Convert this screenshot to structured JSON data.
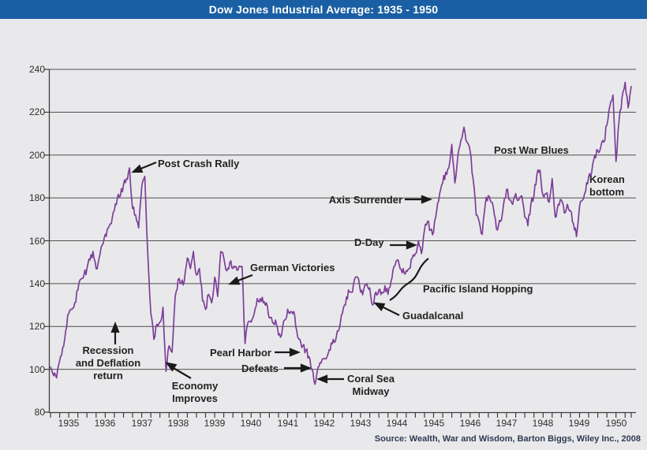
{
  "title_bar": {
    "title": "Dow Jones Industrial Average: 1935 - 1950"
  },
  "source_line": "Source: Wealth, War and Wisdom, Barton Biggs, Wiley Inc., 2008",
  "colors": {
    "titlebar_bg": "#1a5fa4",
    "line": "#7d3f99",
    "background": "#e9e9eb",
    "grid": "#4f4f4f"
  },
  "chart_data": {
    "type": "line",
    "title": "Dow Jones Industrial Average: 1935 - 1950",
    "xlabel": "",
    "ylabel": "",
    "ylim": [
      80,
      240
    ],
    "y_ticks": [
      80,
      100,
      120,
      140,
      160,
      180,
      200,
      220,
      240
    ],
    "x_tick_labels": [
      "1935",
      "1936",
      "1937",
      "1938",
      "1939",
      "1940",
      "1941",
      "1942",
      "1943",
      "1944",
      "1945",
      "1946",
      "1947",
      "1948",
      "1949",
      "1950"
    ],
    "grid": "horizontal",
    "legend": "none",
    "points_per_year": 12,
    "series": [
      {
        "name": "Dow Jones Industrial Average (monthly)",
        "values": [
          101,
          97,
          96,
          104,
          110,
          118,
          126,
          128,
          131,
          137,
          142,
          144,
          147,
          151,
          155,
          147,
          152,
          158,
          163,
          166,
          168,
          174,
          180,
          181,
          186,
          189,
          194,
          175,
          172,
          166,
          185,
          190,
          154,
          126,
          114,
          121,
          122,
          129,
          99,
          111,
          108,
          134,
          142,
          140,
          141,
          152,
          147,
          155,
          144,
          147,
          132,
          128,
          135,
          131,
          143,
          134,
          155,
          152,
          146,
          150,
          147,
          148,
          148,
          148,
          112,
          122,
          122,
          126,
          133,
          133,
          131,
          131,
          124,
          122,
          123,
          116,
          116,
          123,
          128,
          127,
          127,
          118,
          114,
          111,
          109,
          106,
          100,
          93,
          101,
          103,
          105,
          106,
          109,
          114,
          115,
          119,
          126,
          130,
          137,
          136,
          142,
          143,
          136,
          137,
          140,
          138,
          130,
          136,
          137,
          136,
          139,
          135,
          141,
          148,
          151,
          147,
          147,
          146,
          147,
          152,
          154,
          160,
          154,
          165,
          169,
          165,
          164,
          174,
          182,
          187,
          192,
          194,
          205,
          187,
          200,
          207,
          213,
          206,
          202,
          189,
          172,
          169,
          163,
          177,
          181,
          178,
          172,
          165,
          169,
          177,
          184,
          179,
          177,
          182,
          179,
          181,
          171,
          167,
          177,
          181,
          191,
          193,
          181,
          182,
          178,
          189,
          171,
          177,
          179,
          173,
          177,
          174,
          168,
          162,
          176,
          179,
          183,
          190,
          192,
          200,
          202,
          204,
          206,
          214,
          223,
          228,
          197,
          216,
          227,
          234,
          222,
          232
        ]
      }
    ],
    "annotations": {
      "post_crash_rally": {
        "text": "Post Crash Rally"
      },
      "recession": {
        "line1": "Recession",
        "line2": "and Deflation",
        "line3": "return"
      },
      "economy": {
        "line1": "Economy",
        "line2": "Improves"
      },
      "german_victories": {
        "text": "German Victories"
      },
      "pearl_harbor": {
        "text": "Pearl Harbor"
      },
      "defeats": {
        "text": "Defeats"
      },
      "coral_sea": {
        "line1": "Coral Sea",
        "line2": "Midway"
      },
      "guadalcanal": {
        "text": "Guadalcanal"
      },
      "d_day": {
        "text": "D-Day"
      },
      "pacific": {
        "text": "Pacific Island Hopping"
      },
      "axis_surrender": {
        "text": "Axis Surrender"
      },
      "post_war_blues": {
        "text": "Post War Blues"
      },
      "korean": {
        "line1": "Korean",
        "line2": "bottom"
      }
    }
  }
}
